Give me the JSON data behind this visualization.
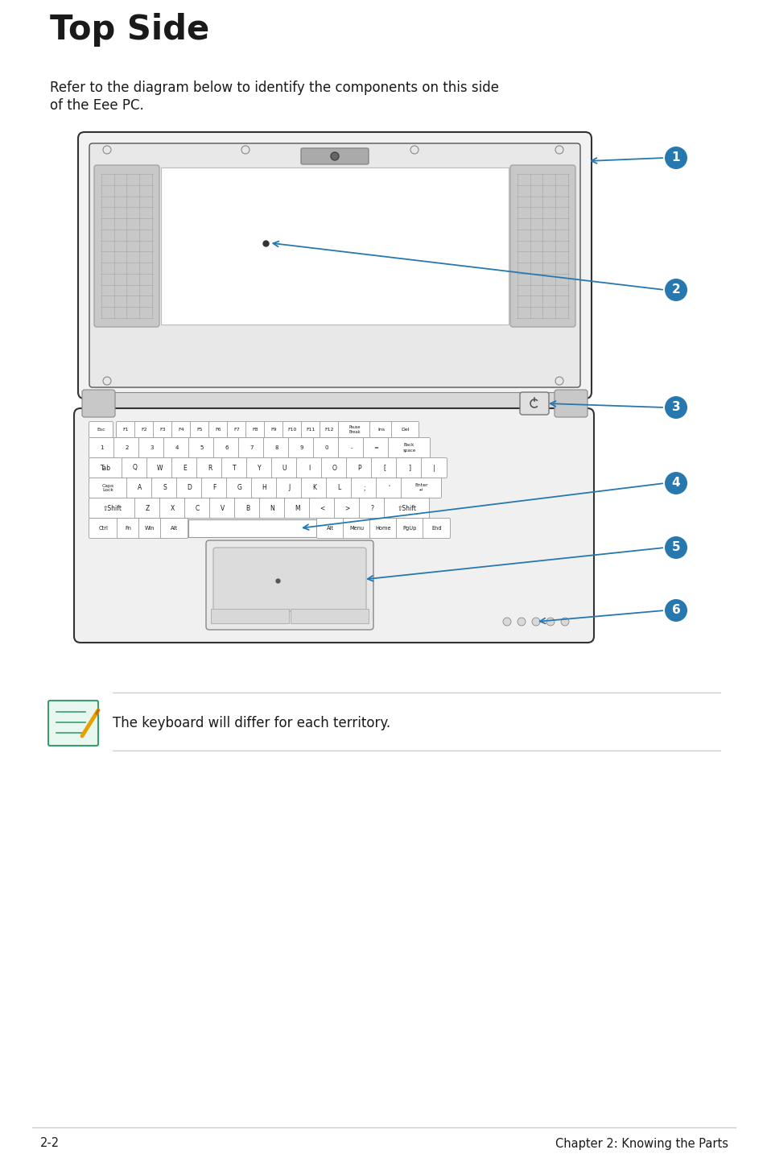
{
  "title": "Top Side",
  "intro_line1": "Refer to the diagram below to identify the components on this side",
  "intro_line2": "of the Eee PC.",
  "page_number": "2-2",
  "chapter_text": "Chapter 2: Knowing the Parts",
  "note_text": "The keyboard will differ for each territory.",
  "bg_color": "#ffffff",
  "line_color": "#cccccc",
  "blue_color": "#2878b0",
  "dark_color": "#1a1a1a",
  "gray_key": "#f0f0f0",
  "gray_bezel": "#e0e0e0",
  "gray_speaker": "#c8c8c8"
}
